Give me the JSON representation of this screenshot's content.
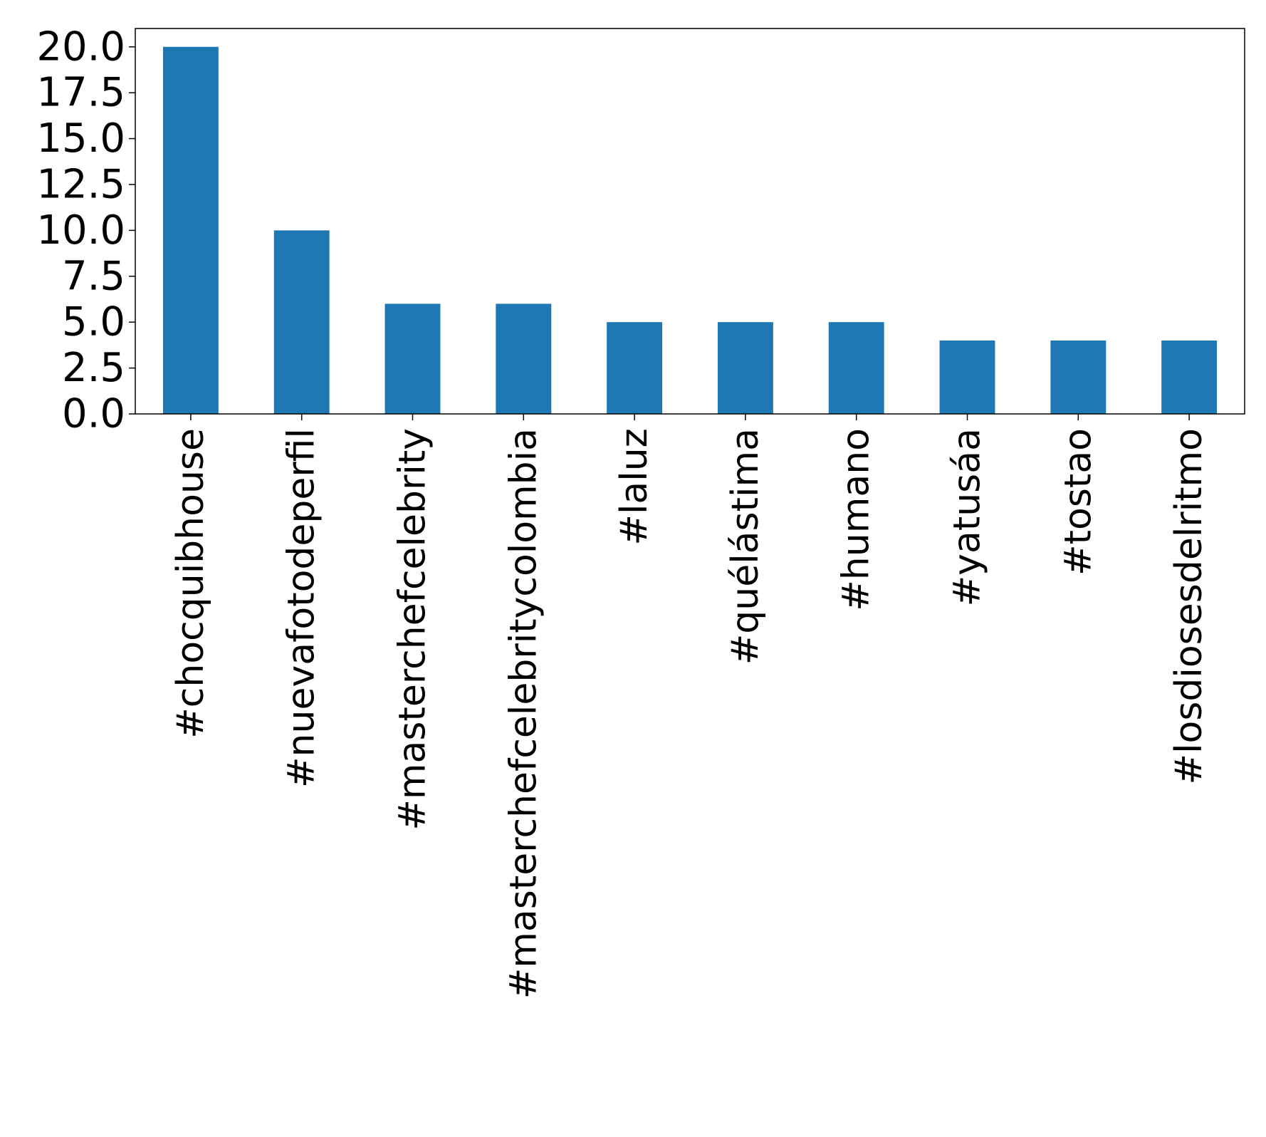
{
  "chart_data": {
    "type": "bar",
    "title": "",
    "xlabel": "",
    "ylabel": "",
    "categories": [
      "#chocquibhouse",
      "#nuevafotodeperfil",
      "#masterchefcelebrity",
      "#masterchefcelebritycolombia",
      "#laluz",
      "#quélástima",
      "#humano",
      "#yatusáa",
      "#tostao",
      "#losdiosesdelritmo"
    ],
    "values": [
      20,
      10,
      6,
      6,
      5,
      5,
      5,
      4,
      4,
      4
    ],
    "ylim": [
      0,
      21
    ],
    "yticks": [
      0,
      2.5,
      5,
      7.5,
      10,
      12.5,
      15,
      17.5,
      20
    ],
    "ytick_labels": [
      "0.0",
      "2.5",
      "5.0",
      "7.5",
      "10.0",
      "12.5",
      "15.0",
      "17.5",
      "20.0"
    ],
    "bar_color": "#1f77b4",
    "grid": false,
    "legend": "none"
  }
}
